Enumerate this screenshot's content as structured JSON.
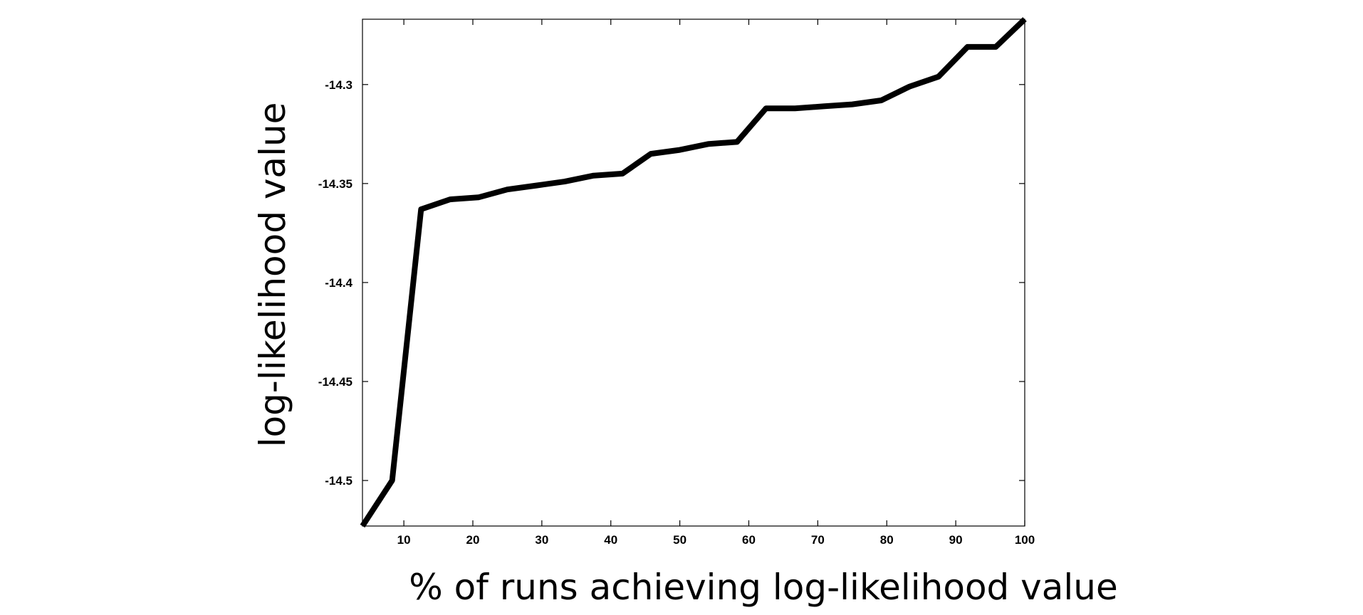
{
  "chart_data": {
    "type": "line",
    "title": "",
    "xlabel": "% of runs achieving log-likelihood value",
    "ylabel": "log-likelihood value",
    "xlim": [
      4,
      100
    ],
    "ylim": [
      -14.523,
      -14.267
    ],
    "xticks": [
      10,
      20,
      30,
      40,
      50,
      60,
      70,
      80,
      90,
      100
    ],
    "yticks": [
      -14.3,
      -14.35,
      -14.4,
      -14.45,
      -14.5
    ],
    "xtick_labels": [
      "10",
      "20",
      "30",
      "40",
      "50",
      "60",
      "70",
      "80",
      "90",
      "100"
    ],
    "ytick_labels": [
      "-14.3",
      "-14.35",
      "-14.4",
      "-14.45",
      "-14.5"
    ],
    "grid": false,
    "series": [
      {
        "color": "#000000",
        "x": [
          4,
          8.3,
          12.5,
          16.7,
          20.8,
          25,
          29.2,
          33.3,
          37.5,
          41.7,
          45.8,
          50,
          54.2,
          58.3,
          62.5,
          66.7,
          70.8,
          75,
          79.2,
          83.3,
          87.5,
          91.7,
          95.8,
          100
        ],
        "y": [
          -14.523,
          -14.5,
          -14.363,
          -14.358,
          -14.357,
          -14.353,
          -14.351,
          -14.349,
          -14.346,
          -14.345,
          -14.335,
          -14.333,
          -14.33,
          -14.329,
          -14.312,
          -14.312,
          -14.311,
          -14.31,
          -14.308,
          -14.301,
          -14.296,
          -14.281,
          -14.281,
          -14.267
        ]
      }
    ]
  }
}
